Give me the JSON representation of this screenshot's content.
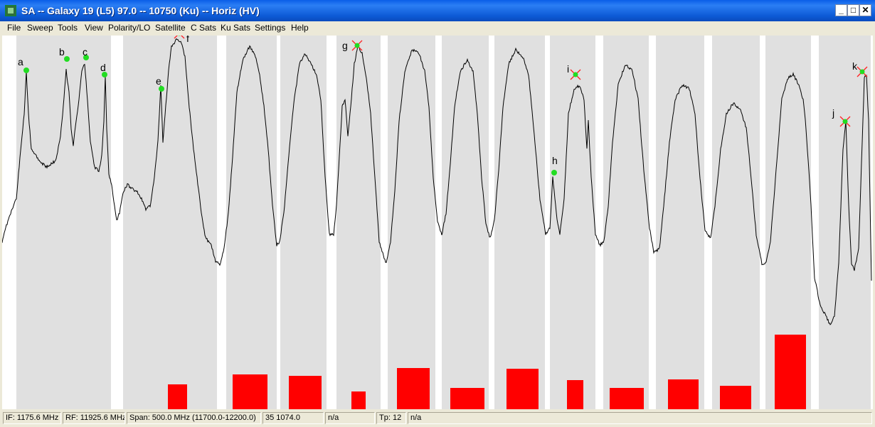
{
  "window": {
    "title": "SA -- Galaxy 19 (L5) 97.0 -- 10750 (Ku) -- Horiz (HV)",
    "minimize_glyph": "_",
    "maximize_glyph": "□",
    "close_glyph": "✕"
  },
  "menu": {
    "file": "File",
    "sweep": "Sweep",
    "tools": "Tools",
    "view": "View",
    "polarity": "Polarity/LO",
    "satellite": "Satellite",
    "c_sats": "C Sats",
    "ku_sats": "Ku Sats",
    "settings": "Settings",
    "help": "Help"
  },
  "markers": [
    {
      "label": "a",
      "type": "dot"
    },
    {
      "label": "b",
      "type": "dot"
    },
    {
      "label": "c",
      "type": "dot"
    },
    {
      "label": "d",
      "type": "dot"
    },
    {
      "label": "e",
      "type": "dot"
    },
    {
      "label": "f",
      "type": "cross"
    },
    {
      "label": "g",
      "type": "cross"
    },
    {
      "label": "h",
      "type": "dot"
    },
    {
      "label": "i",
      "type": "cross"
    },
    {
      "label": "j",
      "type": "cross"
    },
    {
      "label": "k",
      "type": "cross"
    }
  ],
  "colors": {
    "band": "#e0e0e0",
    "trace": "#000000",
    "level_bar": "#ff0000",
    "marker_dot": "#22dd22",
    "marker_cross": "#ff2222"
  },
  "status": {
    "if": "IF: 1175.6 MHz",
    "rf": "RF: 11925.6 MHz",
    "span": "Span: 500.0 MHz (11700.0-12200.0)",
    "reading": "35 1074.0",
    "field5": "n/a",
    "field6": "",
    "tp": "Tp: 12",
    "field8": "n/a"
  }
}
